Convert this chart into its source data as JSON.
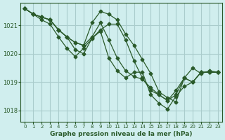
{
  "title": "Graphe pression niveau de la mer (hPa)",
  "bg_color": "#d0eeee",
  "grid_color": "#aacccc",
  "line_color": "#2a5a2a",
  "ylim": [
    1017.6,
    1021.8
  ],
  "xlim": [
    -0.5,
    23.5
  ],
  "yticks": [
    1018,
    1019,
    1020,
    1021
  ],
  "xticks": [
    0,
    1,
    2,
    3,
    4,
    5,
    6,
    7,
    8,
    9,
    10,
    11,
    12,
    13,
    14,
    15,
    16,
    17,
    18,
    19,
    20,
    21,
    22,
    23
  ],
  "series": [
    [
      1021.6,
      1021.4,
      1021.3,
      1021.2,
      1020.85,
      1020.6,
      1020.4,
      1020.3,
      1021.1,
      1021.5,
      1021.4,
      1021.2,
      1020.7,
      1020.3,
      1019.8,
      1019.3,
      1018.65,
      1018.45,
      1018.3,
      1019.15,
      1019.5,
      1019.3,
      1019.4,
      1019.35
    ],
    [
      1021.6,
      1021.4,
      1021.3,
      1021.2,
      1020.85,
      1020.6,
      1020.15,
      1020.0,
      1020.55,
      1020.85,
      1021.05,
      1021.05,
      1020.5,
      1019.75,
      1019.15,
      1018.7,
      1018.55,
      1018.35,
      1018.7,
      1019.15,
      1019.0,
      1019.35,
      1019.35,
      1019.35
    ],
    [
      1021.6,
      1021.4,
      1021.3,
      1021.2,
      1020.85,
      1020.6,
      1020.4,
      1020.3,
      1020.6,
      1021.1,
      1020.5,
      1019.85,
      1019.4,
      1019.2,
      1019.1,
      1018.8,
      1018.55,
      1018.35,
      1018.55,
      1019.15,
      1019.0,
      1019.35,
      1019.35,
      1019.35
    ],
    [
      1021.6,
      1021.4,
      1021.2,
      1021.05,
      1020.6,
      1020.2,
      1019.9,
      1020.2,
      1020.55,
      1020.8,
      1019.85,
      1019.4,
      1019.15,
      1019.35,
      1019.35,
      1018.55,
      1018.25,
      1018.05,
      1018.5,
      1018.85,
      1019.0,
      1019.35,
      1019.35,
      1019.35
    ]
  ]
}
